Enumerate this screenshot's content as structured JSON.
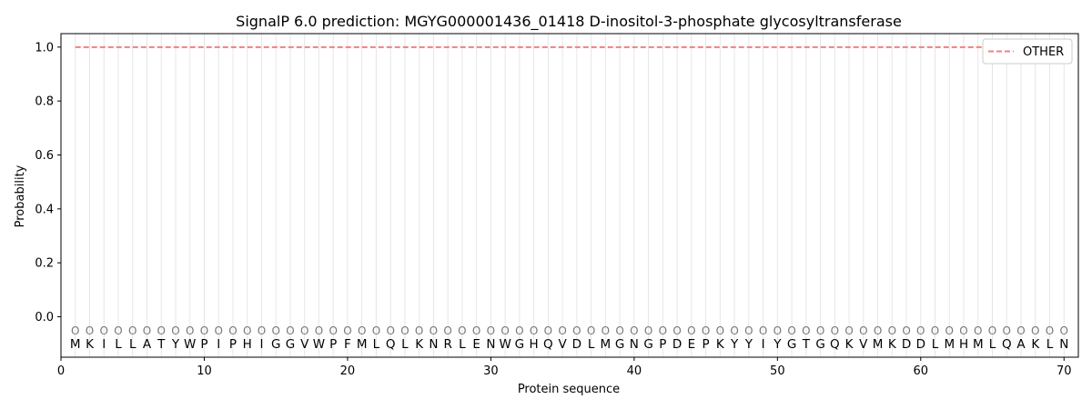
{
  "chart_data": {
    "type": "line",
    "title": "SignalP 6.0 prediction: MGYG000001436_01418 D-inositol-3-phosphate glycosyltransferase",
    "xlabel": "Protein sequence",
    "ylabel": "Probability",
    "xlim": [
      0,
      71
    ],
    "ylim": [
      -0.15,
      1.05
    ],
    "xticks": [
      0,
      10,
      20,
      30,
      40,
      50,
      60,
      70
    ],
    "yticks": [
      0.0,
      0.2,
      0.4,
      0.6,
      0.8,
      1.0
    ],
    "ytick_labels": [
      "0.0",
      "0.2",
      "0.4",
      "0.6",
      "0.8",
      "1.0"
    ],
    "sequence": [
      "M",
      "K",
      "I",
      "L",
      "L",
      "A",
      "T",
      "Y",
      "W",
      "P",
      "I",
      "P",
      "H",
      "I",
      "G",
      "G",
      "V",
      "W",
      "P",
      "F",
      "M",
      "L",
      "Q",
      "L",
      "K",
      "N",
      "R",
      "L",
      "E",
      "N",
      "W",
      "G",
      "H",
      "Q",
      "V",
      "D",
      "L",
      "M",
      "G",
      "N",
      "G",
      "P",
      "D",
      "E",
      "P",
      "K",
      "Y",
      "Y",
      "I",
      "Y",
      "G",
      "T",
      "G",
      "Q",
      "K",
      "V",
      "M",
      "K",
      "D",
      "D",
      "L",
      "M",
      "H",
      "M",
      "L",
      "Q",
      "A",
      "K",
      "L",
      "N"
    ],
    "position_label": "O",
    "series": [
      {
        "name": "OTHER",
        "color": "#f08080",
        "style": "dashed",
        "x": [
          1,
          70
        ],
        "values": [
          1.0,
          1.0
        ]
      }
    ],
    "legend_position": "top-right",
    "grid": "vertical-per-residue"
  }
}
